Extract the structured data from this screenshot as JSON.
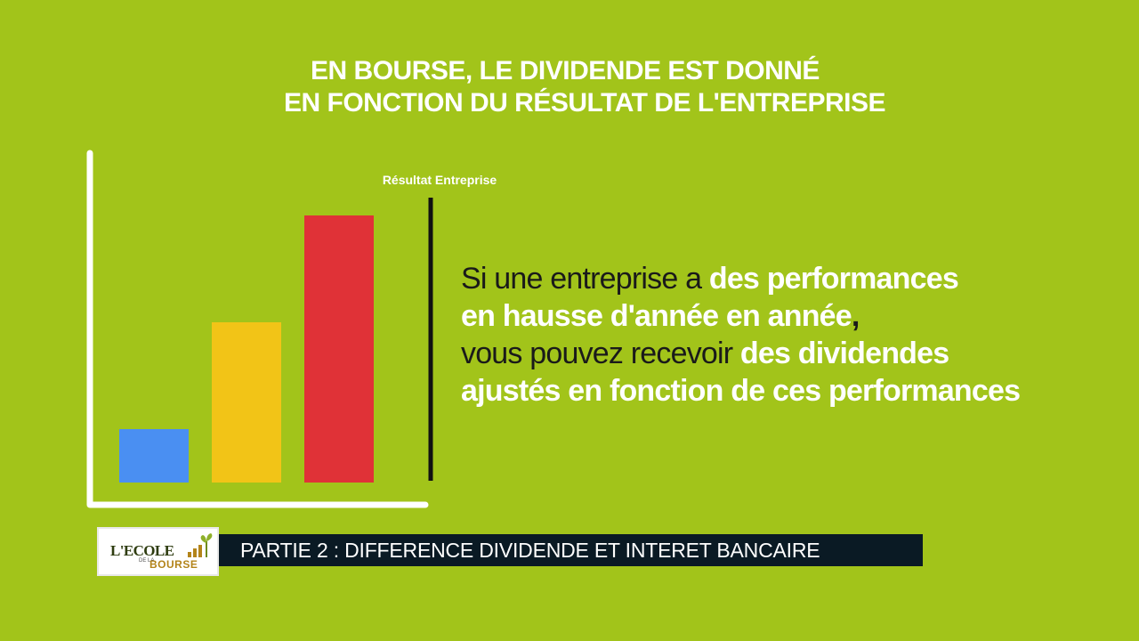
{
  "title": {
    "line1": "EN BOURSE, LE DIVIDENDE EST DONNÉ",
    "line2": "EN FONCTION DU RÉSULTAT DE L'ENTREPRISE"
  },
  "chart_data": {
    "type": "bar",
    "categories": [
      "",
      "",
      ""
    ],
    "values": [
      1,
      3,
      5
    ],
    "colors": [
      "#4a8ff2",
      "#f2c417",
      "#e03237"
    ],
    "title": "Résultat Entreprise",
    "xlabel": "",
    "ylabel": "",
    "ylim": [
      0,
      5.5
    ],
    "grid": false,
    "axis_color": "#ffffff"
  },
  "statement": {
    "p1": "Si une entreprise a ",
    "h1": "des performances",
    "h2": "en hausse d'année en année",
    "comma": ",",
    "p2": "vous pouvez recevoir ",
    "h3": "des dividendes",
    "h4": "ajustés en fonction de ces performances"
  },
  "logo": {
    "line1": "L'ECOLE",
    "mini": "DE LA",
    "line2": "BOURSE"
  },
  "banner": {
    "text": "PARTIE 2 : DIFFERENCE DIVIDENDE ET INTERET BANCAIRE"
  }
}
